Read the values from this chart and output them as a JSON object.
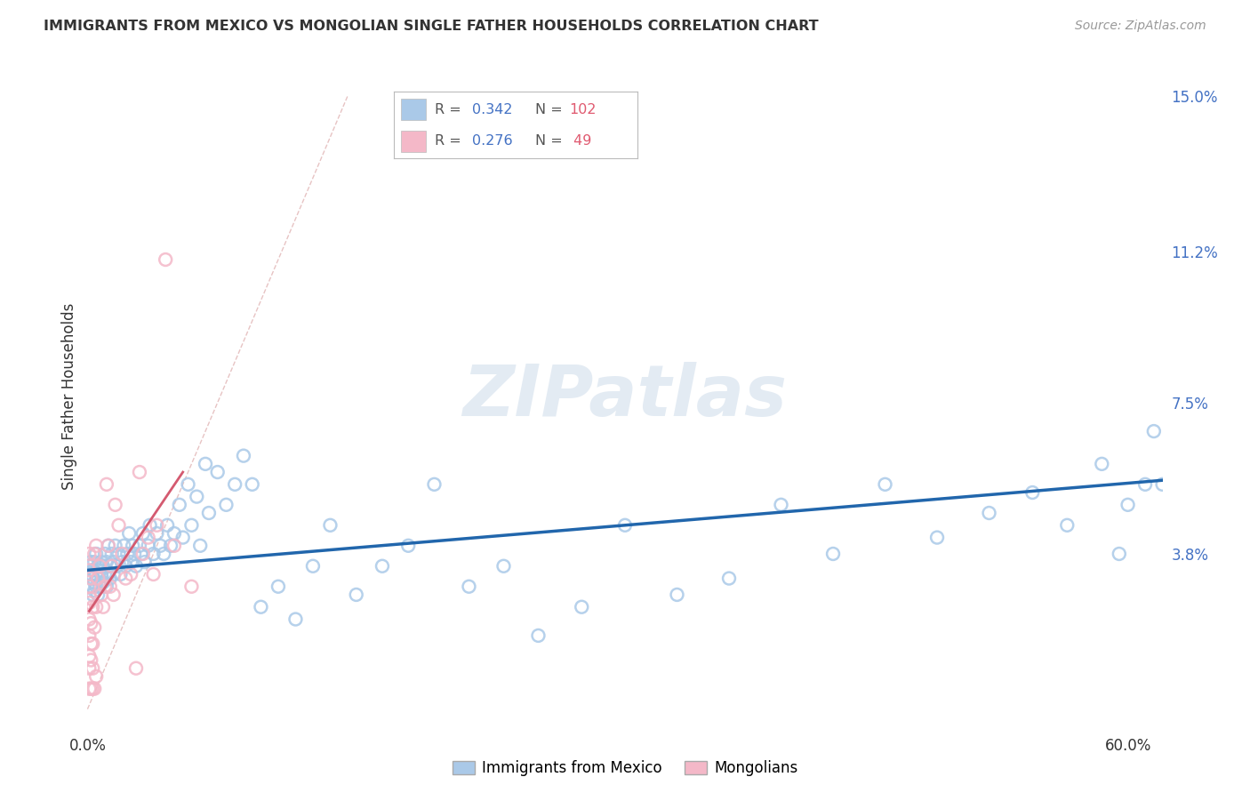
{
  "title": "IMMIGRANTS FROM MEXICO VS MONGOLIAN SINGLE FATHER HOUSEHOLDS CORRELATION CHART",
  "source": "Source: ZipAtlas.com",
  "ylabel": "Single Father Households",
  "xlim": [
    0.0,
    0.62
  ],
  "ylim": [
    -0.005,
    0.158
  ],
  "xticks": [
    0.0,
    0.1,
    0.2,
    0.3,
    0.4,
    0.5,
    0.6
  ],
  "ytick_labels_right": [
    "15.0%",
    "11.2%",
    "7.5%",
    "3.8%"
  ],
  "ytick_values_right": [
    0.15,
    0.112,
    0.075,
    0.038
  ],
  "grid_color": "#cccccc",
  "background_color": "#ffffff",
  "blue_color": "#aac9e8",
  "pink_color": "#f4b8c8",
  "blue_edge_color": "#7aadd4",
  "pink_edge_color": "#e888a8",
  "blue_line_color": "#2166ac",
  "pink_line_color": "#d45a70",
  "diagonal_color": "#cccccc",
  "R_blue": 0.342,
  "N_blue": 102,
  "R_pink": 0.276,
  "N_pink": 49,
  "legend_label_blue": "Immigrants from Mexico",
  "legend_label_pink": "Mongolians",
  "watermark": "ZIPatlas",
  "blue_scatter_x": [
    0.001,
    0.002,
    0.002,
    0.002,
    0.003,
    0.003,
    0.003,
    0.004,
    0.004,
    0.004,
    0.005,
    0.005,
    0.005,
    0.006,
    0.006,
    0.006,
    0.007,
    0.007,
    0.008,
    0.008,
    0.009,
    0.009,
    0.01,
    0.01,
    0.011,
    0.011,
    0.012,
    0.012,
    0.013,
    0.013,
    0.014,
    0.015,
    0.015,
    0.016,
    0.017,
    0.018,
    0.019,
    0.02,
    0.021,
    0.022,
    0.023,
    0.024,
    0.025,
    0.026,
    0.027,
    0.028,
    0.03,
    0.031,
    0.032,
    0.033,
    0.035,
    0.036,
    0.038,
    0.04,
    0.042,
    0.044,
    0.046,
    0.048,
    0.05,
    0.053,
    0.055,
    0.058,
    0.06,
    0.063,
    0.065,
    0.068,
    0.07,
    0.075,
    0.08,
    0.085,
    0.09,
    0.095,
    0.1,
    0.11,
    0.12,
    0.13,
    0.14,
    0.155,
    0.17,
    0.185,
    0.2,
    0.22,
    0.24,
    0.26,
    0.285,
    0.31,
    0.34,
    0.37,
    0.4,
    0.43,
    0.46,
    0.49,
    0.52,
    0.545,
    0.565,
    0.585,
    0.595,
    0.6,
    0.61,
    0.615,
    0.62,
    0.625
  ],
  "blue_scatter_y": [
    0.035,
    0.033,
    0.036,
    0.03,
    0.032,
    0.028,
    0.034,
    0.031,
    0.029,
    0.036,
    0.033,
    0.03,
    0.038,
    0.032,
    0.035,
    0.028,
    0.034,
    0.03,
    0.033,
    0.036,
    0.031,
    0.035,
    0.033,
    0.038,
    0.03,
    0.036,
    0.033,
    0.04,
    0.035,
    0.032,
    0.038,
    0.033,
    0.036,
    0.04,
    0.035,
    0.038,
    0.033,
    0.036,
    0.04,
    0.035,
    0.038,
    0.043,
    0.036,
    0.04,
    0.038,
    0.035,
    0.04,
    0.038,
    0.043,
    0.036,
    0.04,
    0.045,
    0.038,
    0.043,
    0.04,
    0.038,
    0.045,
    0.04,
    0.043,
    0.05,
    0.042,
    0.055,
    0.045,
    0.052,
    0.04,
    0.06,
    0.048,
    0.058,
    0.05,
    0.055,
    0.062,
    0.055,
    0.025,
    0.03,
    0.022,
    0.035,
    0.045,
    0.028,
    0.035,
    0.04,
    0.055,
    0.03,
    0.035,
    0.018,
    0.025,
    0.045,
    0.028,
    0.032,
    0.05,
    0.038,
    0.055,
    0.042,
    0.048,
    0.053,
    0.045,
    0.06,
    0.038,
    0.05,
    0.055,
    0.068,
    0.055,
    0.048
  ],
  "pink_scatter_x": [
    0.001,
    0.001,
    0.001,
    0.001,
    0.001,
    0.001,
    0.001,
    0.001,
    0.001,
    0.002,
    0.002,
    0.002,
    0.002,
    0.002,
    0.002,
    0.003,
    0.003,
    0.003,
    0.003,
    0.004,
    0.004,
    0.004,
    0.005,
    0.005,
    0.005,
    0.006,
    0.007,
    0.008,
    0.009,
    0.01,
    0.011,
    0.012,
    0.013,
    0.014,
    0.015,
    0.016,
    0.018,
    0.02,
    0.022,
    0.025,
    0.028,
    0.03,
    0.032,
    0.035,
    0.038,
    0.04,
    0.045,
    0.05,
    0.06
  ],
  "pink_scatter_y": [
    0.01,
    0.013,
    0.018,
    0.022,
    0.026,
    0.03,
    0.034,
    0.038,
    0.005,
    0.012,
    0.016,
    0.021,
    0.027,
    0.032,
    0.005,
    0.01,
    0.016,
    0.025,
    0.005,
    0.02,
    0.038,
    0.005,
    0.025,
    0.04,
    0.008,
    0.032,
    0.035,
    0.028,
    0.025,
    0.03,
    0.055,
    0.04,
    0.03,
    0.035,
    0.028,
    0.05,
    0.045,
    0.038,
    0.032,
    0.033,
    0.01,
    0.058,
    0.038,
    0.042,
    0.033,
    0.045,
    0.11,
    0.04,
    0.03
  ],
  "blue_trend_x": [
    0.0,
    0.62
  ],
  "blue_trend_y": [
    0.034,
    0.056
  ],
  "pink_trend_x": [
    0.001,
    0.055
  ],
  "pink_trend_y": [
    0.024,
    0.058
  ]
}
